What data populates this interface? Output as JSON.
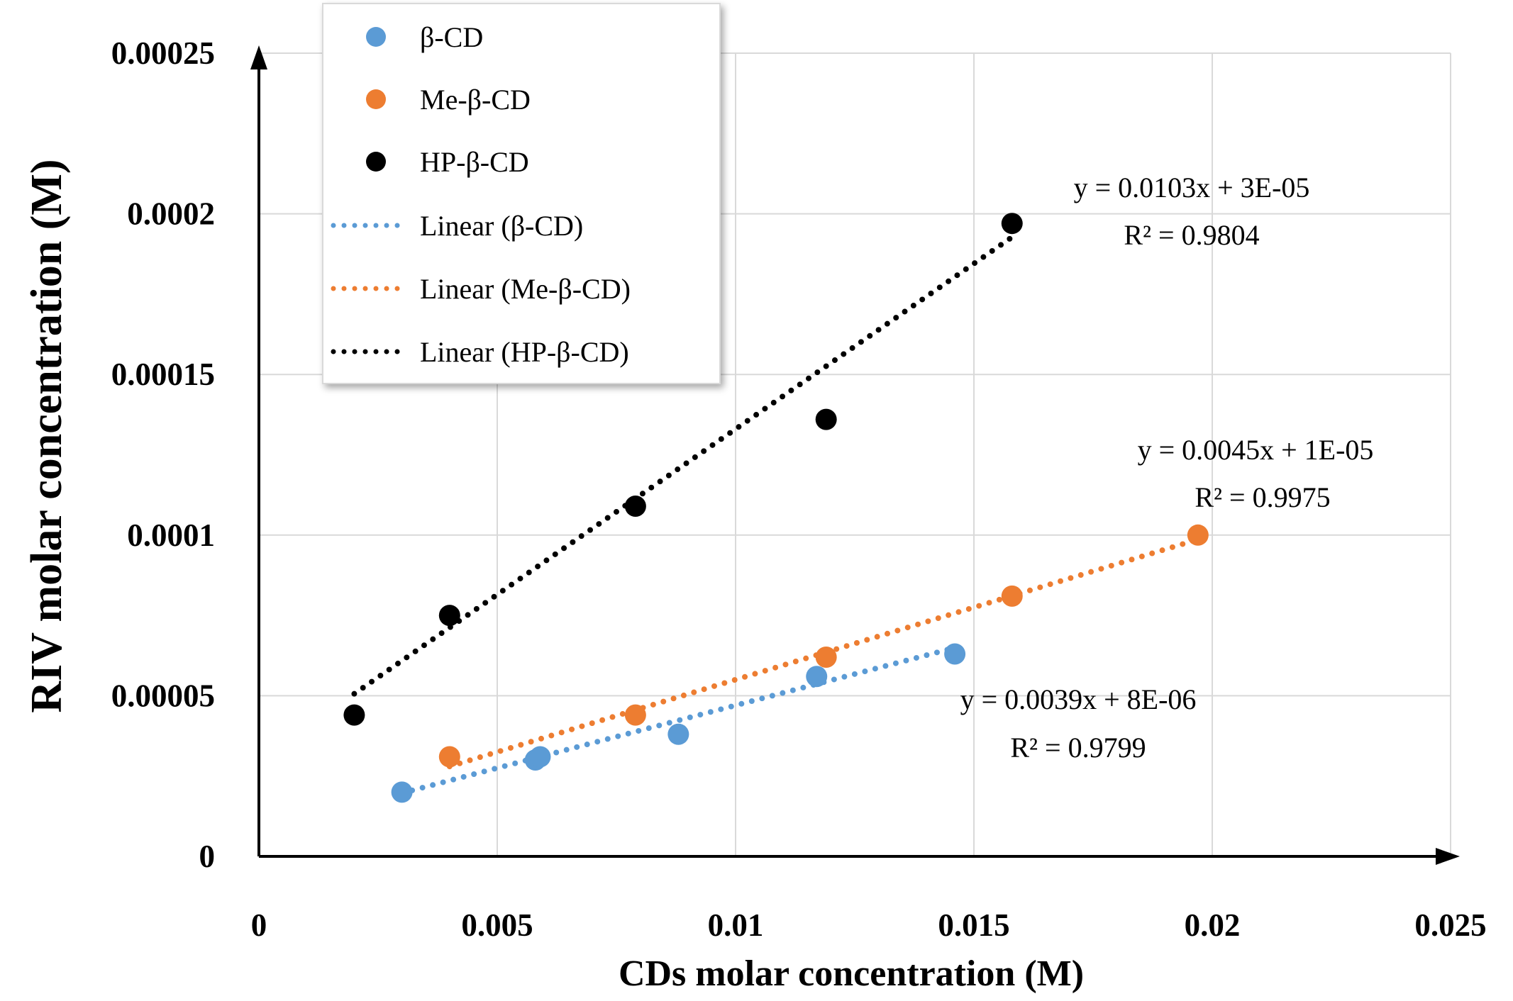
{
  "chart_data": {
    "type": "scatter",
    "xlabel": "CDs molar concentration (M)",
    "ylabel": "RIV  molar concentration (M)",
    "xlim": [
      0,
      0.025
    ],
    "ylim": [
      0,
      0.00025
    ],
    "x_ticks": [
      0,
      0.005,
      0.01,
      0.015,
      0.02,
      0.025
    ],
    "x_tick_labels": [
      "0",
      "0.005",
      "0.01",
      "0.015",
      "0.02",
      "0.025"
    ],
    "y_ticks": [
      0,
      5e-05,
      0.0001,
      0.00015,
      0.0002,
      0.00025
    ],
    "y_tick_labels": [
      "0",
      "0.00005",
      "0.0001",
      "0.00015",
      "0.0002",
      "0.00025"
    ],
    "grid": true,
    "legend_position": "top-left",
    "series": [
      {
        "name": "β-CD",
        "color": "#5B9BD5",
        "x": [
          0.003,
          0.0058,
          0.0059,
          0.0088,
          0.0117,
          0.0146
        ],
        "y": [
          2e-05,
          3e-05,
          3.1e-05,
          3.8e-05,
          5.6e-05,
          6.3e-05
        ],
        "trend_label": "Linear (β-CD)",
        "trend": {
          "slope": 0.0039,
          "intercept": 8e-06,
          "x_range": [
            0.003,
            0.0146
          ]
        },
        "equation": "y = 0.0039x + 8E-06",
        "r2": "R² = 0.9799"
      },
      {
        "name": "Me-β-CD",
        "color": "#ED7D31",
        "x": [
          0.004,
          0.0079,
          0.0119,
          0.0158,
          0.0197
        ],
        "y": [
          3.1e-05,
          4.4e-05,
          6.2e-05,
          8.1e-05,
          0.0001
        ],
        "trend_label": "Linear (Me-β-CD)",
        "trend": {
          "slope": 0.0045,
          "intercept": 1e-05,
          "x_range": [
            0.004,
            0.0197
          ]
        },
        "equation": "y = 0.0045x + 1E-05",
        "r2": "R² = 0.9975"
      },
      {
        "name": "HP-β-CD",
        "color": "#000000",
        "x": [
          0.002,
          0.004,
          0.0079,
          0.0119,
          0.0158
        ],
        "y": [
          4.4e-05,
          7.5e-05,
          0.000109,
          0.000136,
          0.000197
        ],
        "trend_label": "Linear (HP-β-CD)",
        "trend": {
          "slope": 0.0103,
          "intercept": 3e-05,
          "x_range": [
            0.002,
            0.0158
          ]
        },
        "equation": "y = 0.0103x + 3E-05",
        "r2": "R² = 0.9804"
      }
    ]
  }
}
